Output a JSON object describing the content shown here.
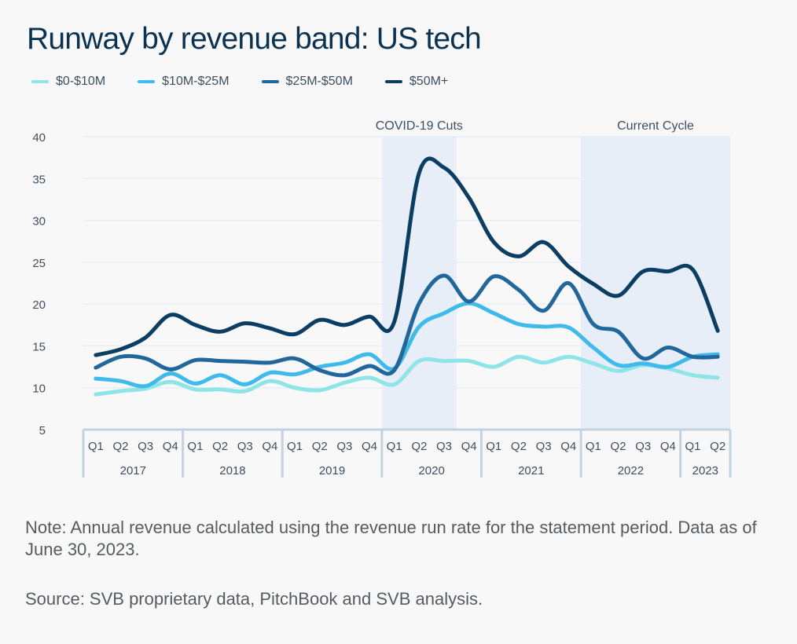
{
  "chart_data": {
    "type": "line",
    "title": "Runway by revenue band: US tech",
    "xlabel": "",
    "ylabel": "",
    "ylim": [
      5,
      40
    ],
    "yticks": [
      5,
      10,
      15,
      20,
      25,
      30,
      35,
      40
    ],
    "grid": true,
    "legend_position": "top-left",
    "x": [
      "Q1 2017",
      "Q2 2017",
      "Q3 2017",
      "Q4 2017",
      "Q1 2018",
      "Q2 2018",
      "Q3 2018",
      "Q4 2018",
      "Q1 2019",
      "Q2 2019",
      "Q3 2019",
      "Q4 2019",
      "Q1 2020",
      "Q2 2020",
      "Q3 2020",
      "Q4 2020",
      "Q1 2021",
      "Q2 2021",
      "Q3 2021",
      "Q4 2021",
      "Q1 2022",
      "Q2 2022",
      "Q3 2022",
      "Q4 2022",
      "Q1 2023",
      "Q2 2023"
    ],
    "quarter_labels": [
      "Q1",
      "Q2",
      "Q3",
      "Q4",
      "Q1",
      "Q2",
      "Q3",
      "Q4",
      "Q1",
      "Q2",
      "Q3",
      "Q4",
      "Q1",
      "Q2",
      "Q3",
      "Q4",
      "Q1",
      "Q2",
      "Q3",
      "Q4",
      "Q1",
      "Q2",
      "Q3",
      "Q4",
      "Q1",
      "Q2"
    ],
    "year_groups": [
      {
        "label": "2017",
        "start": 0,
        "count": 4
      },
      {
        "label": "2018",
        "start": 4,
        "count": 4
      },
      {
        "label": "2019",
        "start": 8,
        "count": 4
      },
      {
        "label": "2020",
        "start": 12,
        "count": 4
      },
      {
        "label": "2021",
        "start": 16,
        "count": 4
      },
      {
        "label": "2022",
        "start": 20,
        "count": 4
      },
      {
        "label": "2023",
        "start": 24,
        "count": 2
      }
    ],
    "series": [
      {
        "name": "$0-$10M",
        "color": "#8ee4e6",
        "values": [
          9.2,
          9.6,
          9.9,
          10.7,
          9.8,
          9.8,
          9.6,
          10.8,
          10.0,
          9.7,
          10.6,
          11.2,
          10.4,
          13.2,
          13.2,
          13.2,
          12.5,
          13.7,
          13.0,
          13.7,
          12.9,
          12.0,
          12.7,
          12.3,
          11.5,
          11.2
        ]
      },
      {
        "name": "$10M-$25M",
        "color": "#3fbaeb",
        "values": [
          11.1,
          10.8,
          10.2,
          11.7,
          10.5,
          11.5,
          10.4,
          11.8,
          11.6,
          12.5,
          13.0,
          14.0,
          12.3,
          17.3,
          18.9,
          20.1,
          18.9,
          17.6,
          17.3,
          17.2,
          14.8,
          12.7,
          12.9,
          12.5,
          13.7,
          14.0
        ]
      },
      {
        "name": "$25M-$50M",
        "color": "#22679c",
        "values": [
          12.4,
          13.7,
          13.5,
          12.2,
          13.3,
          13.2,
          13.1,
          13.0,
          13.5,
          12.1,
          11.5,
          12.6,
          12.1,
          20.1,
          23.4,
          20.3,
          23.3,
          21.7,
          19.2,
          22.5,
          17.6,
          16.7,
          13.5,
          14.8,
          13.7,
          13.7
        ]
      },
      {
        "name": "$50M+",
        "color": "#0c3d63",
        "values": [
          13.9,
          14.6,
          16.0,
          18.7,
          17.5,
          16.7,
          17.7,
          17.1,
          16.4,
          18.1,
          17.5,
          18.5,
          17.9,
          35.7,
          36.3,
          32.7,
          27.4,
          25.7,
          27.4,
          24.5,
          22.4,
          21.0,
          23.9,
          23.9,
          24.1,
          16.8
        ]
      }
    ],
    "annotations": [
      {
        "label": "COVID-19 Cuts",
        "from": "Q1 2020",
        "to": "Q3 2020",
        "shade_color": "#e7eef8"
      },
      {
        "label": "Current Cycle",
        "from": "Q1 2022",
        "to": "Q2 2023",
        "shade_color": "#e7eef8"
      }
    ]
  },
  "footer": {
    "note": "Note: Annual revenue calculated using the revenue run rate for the statement period. Data as of June 30, 2023.",
    "source": "Source: SVB proprietary data, PitchBook and SVB analysis."
  }
}
